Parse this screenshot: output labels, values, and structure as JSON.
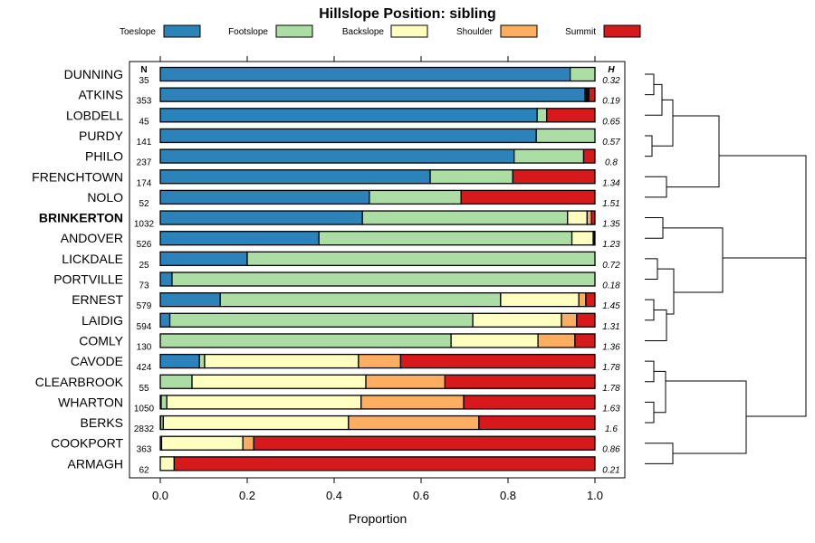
{
  "chart_data": {
    "type": "bar",
    "orientation": "horizontal",
    "stacked": true,
    "title": "Hillslope Position: sibling",
    "xlabel": "Proportion",
    "ylabel": "",
    "xlim": [
      0,
      1
    ],
    "x_ticks": [
      "0.0",
      "0.2",
      "0.4",
      "0.6",
      "0.8",
      "1.0"
    ],
    "x_tick_values": [
      0,
      0.2,
      0.4,
      0.6,
      0.8,
      1.0
    ],
    "n_header": "N",
    "h_header": "H",
    "legend": [
      {
        "name": "Toeslope",
        "color": "#2B83BA"
      },
      {
        "name": "Footslope",
        "color": "#ABDDA4"
      },
      {
        "name": "Backslope",
        "color": "#FFFFBF"
      },
      {
        "name": "Shoulder",
        "color": "#FDAE61"
      },
      {
        "name": "Summit",
        "color": "#D7191C"
      }
    ],
    "rows": [
      {
        "name": "DUNNING",
        "n": "35",
        "h": "0.32",
        "bold": false,
        "values": [
          0.943,
          0.057,
          0,
          0,
          0
        ]
      },
      {
        "name": "ATKINS",
        "n": "353",
        "h": "0.19",
        "bold": false,
        "values": [
          0.977,
          0.003,
          0.003,
          0.003,
          0.014
        ]
      },
      {
        "name": "LOBDELL",
        "n": "45",
        "h": "0.65",
        "bold": false,
        "values": [
          0.867,
          0.022,
          0,
          0,
          0.111
        ]
      },
      {
        "name": "PURDY",
        "n": "141",
        "h": "0.57",
        "bold": false,
        "values": [
          0.865,
          0.135,
          0,
          0,
          0
        ]
      },
      {
        "name": "PHILO",
        "n": "237",
        "h": "0.8",
        "bold": false,
        "values": [
          0.814,
          0.16,
          0,
          0,
          0.026
        ]
      },
      {
        "name": "FRENCHTOWN",
        "n": "174",
        "h": "1.34",
        "bold": false,
        "values": [
          0.621,
          0.19,
          0,
          0,
          0.189
        ]
      },
      {
        "name": "NOLO",
        "n": "52",
        "h": "1.51",
        "bold": false,
        "values": [
          0.481,
          0.211,
          0,
          0,
          0.308
        ]
      },
      {
        "name": "BRINKERTON",
        "n": "1032",
        "h": "1.35",
        "bold": true,
        "values": [
          0.465,
          0.472,
          0.045,
          0.01,
          0.008
        ]
      },
      {
        "name": "ANDOVER",
        "n": "526",
        "h": "1.23",
        "bold": false,
        "values": [
          0.365,
          0.582,
          0.049,
          0.002,
          0.002
        ]
      },
      {
        "name": "LICKDALE",
        "n": "25",
        "h": "0.72",
        "bold": false,
        "values": [
          0.2,
          0.8,
          0,
          0,
          0
        ]
      },
      {
        "name": "PORTVILLE",
        "n": "73",
        "h": "0.18",
        "bold": false,
        "values": [
          0.027,
          0.973,
          0,
          0,
          0
        ]
      },
      {
        "name": "ERNEST",
        "n": "579",
        "h": "1.45",
        "bold": false,
        "values": [
          0.138,
          0.645,
          0.18,
          0.016,
          0.021
        ]
      },
      {
        "name": "LAIDIG",
        "n": "594",
        "h": "1.31",
        "bold": false,
        "values": [
          0.022,
          0.697,
          0.204,
          0.035,
          0.042
        ]
      },
      {
        "name": "COMLY",
        "n": "130",
        "h": "1.36",
        "bold": false,
        "values": [
          0,
          0.669,
          0.2,
          0.085,
          0.046
        ]
      },
      {
        "name": "CAVODE",
        "n": "424",
        "h": "1.78",
        "bold": false,
        "values": [
          0.09,
          0.012,
          0.354,
          0.097,
          0.447
        ]
      },
      {
        "name": "CLEARBROOK",
        "n": "55",
        "h": "1.78",
        "bold": false,
        "values": [
          0,
          0.073,
          0.4,
          0.182,
          0.345
        ]
      },
      {
        "name": "WHARTON",
        "n": "1050",
        "h": "1.63",
        "bold": false,
        "values": [
          0.002,
          0.013,
          0.447,
          0.236,
          0.302
        ]
      },
      {
        "name": "BERKS",
        "n": "2832",
        "h": "1.6",
        "bold": false,
        "values": [
          0.001,
          0.006,
          0.426,
          0.3,
          0.267
        ]
      },
      {
        "name": "COOKPORT",
        "n": "363",
        "h": "0.86",
        "bold": false,
        "values": [
          0,
          0.003,
          0.187,
          0.025,
          0.785
        ]
      },
      {
        "name": "ARMAGH",
        "n": "62",
        "h": "0.21",
        "bold": false,
        "values": [
          0,
          0,
          0.032,
          0,
          0.968
        ]
      }
    ]
  }
}
